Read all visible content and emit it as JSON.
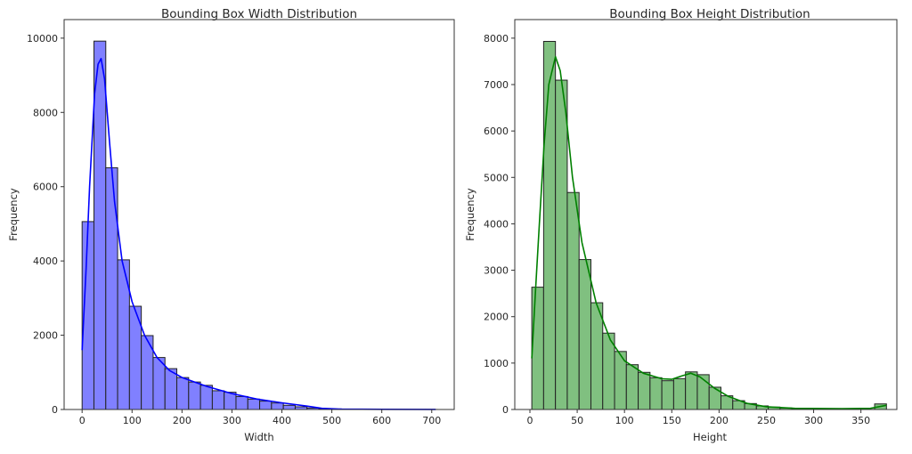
{
  "chart_data": [
    {
      "type": "bar",
      "title": "Bounding Box Width Distribution",
      "xlabel": "Width",
      "ylabel": "Frequency",
      "xlim": [
        -36,
        745
      ],
      "ylim": [
        0,
        10500
      ],
      "xticks": [
        0,
        100,
        200,
        300,
        400,
        500,
        600,
        700
      ],
      "yticks": [
        0,
        2000,
        4000,
        6000,
        8000,
        10000
      ],
      "bin_start": 0,
      "bin_width": 23.7,
      "values": [
        5060,
        9920,
        6510,
        4030,
        2780,
        1990,
        1400,
        1100,
        860,
        740,
        650,
        505,
        465,
        350,
        280,
        225,
        175,
        113,
        72,
        40,
        20,
        12,
        8,
        5,
        3,
        2,
        1,
        1,
        1,
        1
      ],
      "color": "#0000ff",
      "fill": "#8080ff",
      "kde": [
        [
          0,
          1600
        ],
        [
          8,
          3800
        ],
        [
          15,
          6000
        ],
        [
          25,
          8500
        ],
        [
          32,
          9300
        ],
        [
          38,
          9450
        ],
        [
          45,
          8900
        ],
        [
          55,
          7200
        ],
        [
          65,
          5600
        ],
        [
          80,
          4000
        ],
        [
          100,
          2900
        ],
        [
          125,
          2000
        ],
        [
          150,
          1400
        ],
        [
          175,
          1050
        ],
        [
          200,
          860
        ],
        [
          250,
          620
        ],
        [
          300,
          430
        ],
        [
          350,
          280
        ],
        [
          400,
          180
        ],
        [
          450,
          90
        ],
        [
          480,
          30
        ],
        [
          520,
          10
        ],
        [
          600,
          5
        ],
        [
          708,
          2
        ]
      ]
    },
    {
      "type": "bar",
      "title": "Bounding Box Height Distribution",
      "xlabel": "Height",
      "ylabel": "Frequency",
      "xlim": [
        -16,
        388
      ],
      "ylim": [
        0,
        8400
      ],
      "xticks": [
        0,
        50,
        100,
        150,
        200,
        250,
        300,
        350
      ],
      "yticks": [
        0,
        1000,
        2000,
        3000,
        4000,
        5000,
        6000,
        7000,
        8000
      ],
      "bin_start": 2,
      "bin_width": 12.5,
      "values": [
        2635,
        7930,
        7095,
        4675,
        3230,
        2300,
        1645,
        1250,
        965,
        800,
        685,
        620,
        665,
        810,
        750,
        480,
        295,
        190,
        128,
        77,
        52,
        33,
        20,
        12,
        8,
        5,
        4,
        3,
        3,
        120
      ],
      "color": "#008000",
      "fill": "#80c080",
      "kde": [
        [
          2,
          1100
        ],
        [
          6,
          2600
        ],
        [
          10,
          4000
        ],
        [
          15,
          5700
        ],
        [
          20,
          7000
        ],
        [
          27,
          7600
        ],
        [
          32,
          7300
        ],
        [
          38,
          6400
        ],
        [
          45,
          5000
        ],
        [
          55,
          3600
        ],
        [
          70,
          2300
        ],
        [
          85,
          1500
        ],
        [
          100,
          1050
        ],
        [
          120,
          780
        ],
        [
          140,
          660
        ],
        [
          150,
          650
        ],
        [
          160,
          720
        ],
        [
          170,
          780
        ],
        [
          180,
          700
        ],
        [
          195,
          460
        ],
        [
          210,
          280
        ],
        [
          230,
          130
        ],
        [
          250,
          60
        ],
        [
          280,
          25
        ],
        [
          330,
          20
        ],
        [
          360,
          25
        ],
        [
          377,
          90
        ]
      ]
    }
  ]
}
